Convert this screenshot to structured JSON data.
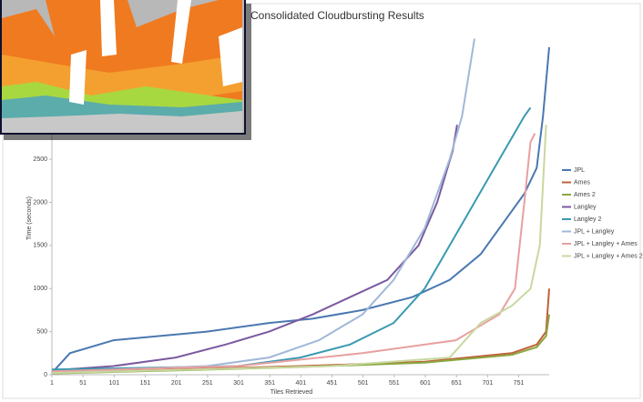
{
  "chart_data": {
    "type": "line",
    "title": "Consolidated Cloudbursting Results",
    "x_label": "Tiles Retrieved",
    "y_label": "Time (seconds)",
    "xlim": [
      1,
      800
    ],
    "ylim": [
      0,
      4000
    ],
    "xticks": [
      1,
      51,
      101,
      151,
      201,
      251,
      301,
      351,
      401,
      451,
      501,
      551,
      601,
      651,
      701,
      751
    ],
    "yticks": [
      0,
      500,
      1000,
      1500,
      2000,
      2500
    ],
    "grid": false,
    "legend": "right",
    "series": [
      {
        "name": "JPL",
        "color": "#4a78b0",
        "x": [
          1,
          30,
          100,
          250,
          350,
          420,
          500,
          580,
          640,
          690,
          730,
          760,
          780,
          790,
          800
        ],
        "values": [
          20,
          250,
          400,
          500,
          600,
          650,
          750,
          900,
          1100,
          1400,
          1800,
          2100,
          2400,
          3000,
          3800
        ]
      },
      {
        "name": "Ames",
        "color": "#c0603a",
        "x": [
          1,
          200,
          400,
          600,
          740,
          780,
          795,
          800
        ],
        "values": [
          20,
          60,
          100,
          150,
          250,
          350,
          500,
          1000
        ]
      },
      {
        "name": "Ames 2",
        "color": "#8aa840",
        "x": [
          1,
          200,
          400,
          600,
          740,
          780,
          795,
          800
        ],
        "values": [
          15,
          50,
          90,
          140,
          230,
          320,
          450,
          700
        ]
      },
      {
        "name": "Langley",
        "color": "#7b5aa0",
        "x": [
          1,
          100,
          200,
          280,
          350,
          420,
          480,
          540,
          590,
          620,
          645,
          652
        ],
        "values": [
          50,
          100,
          200,
          350,
          500,
          700,
          900,
          1100,
          1500,
          2000,
          2600,
          2900
        ]
      },
      {
        "name": "Langley 2",
        "color": "#3a9ab0",
        "x": [
          1,
          300,
          400,
          480,
          550,
          600,
          640,
          680,
          720,
          760,
          770
        ],
        "values": [
          60,
          100,
          200,
          350,
          600,
          1000,
          1500,
          2000,
          2500,
          3000,
          3100
        ]
      },
      {
        "name": "JPL + Langley",
        "color": "#a0b8d8",
        "x": [
          1,
          250,
          350,
          430,
          500,
          550,
          600,
          640,
          660,
          680
        ],
        "values": [
          30,
          100,
          200,
          400,
          700,
          1100,
          1700,
          2500,
          3000,
          3900
        ]
      },
      {
        "name": "JPL + Langley + Ames",
        "color": "#e8a0a0",
        "x": [
          1,
          300,
          500,
          650,
          720,
          745,
          760,
          770,
          777
        ],
        "values": [
          40,
          100,
          250,
          400,
          700,
          1000,
          2000,
          2700,
          2800
        ]
      },
      {
        "name": "JPL + Langley + Ames 2",
        "color": "#c8d8a0",
        "x": [
          1,
          450,
          640,
          690,
          740,
          770,
          785,
          795
        ],
        "values": [
          20,
          100,
          200,
          600,
          800,
          1000,
          1500,
          2900
        ]
      }
    ]
  }
}
